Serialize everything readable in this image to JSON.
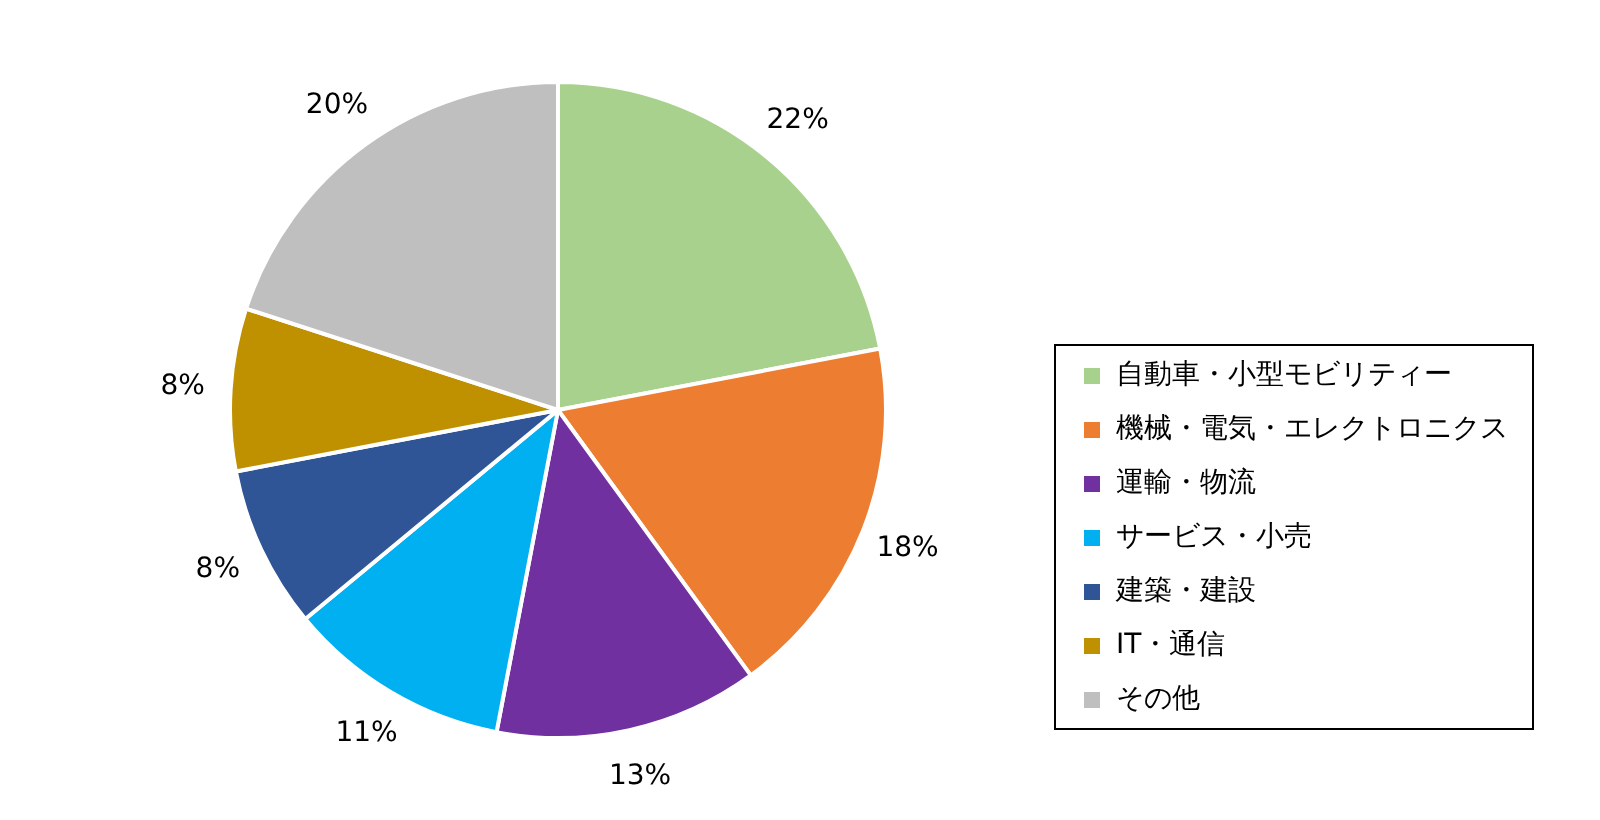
{
  "chart_data": {
    "type": "pie",
    "categories": [
      "自動車・小型モビリティー",
      "機械・電気・エレクトロニクス",
      "運輸・物流",
      "サービス・小売",
      "建築・建設",
      "IT・通信",
      "その他"
    ],
    "values": [
      22,
      18,
      13,
      11,
      8,
      8,
      20
    ],
    "value_labels": [
      "22%",
      "18%",
      "13%",
      "11%",
      "8%",
      "8%",
      "20%"
    ],
    "colors": [
      "#a9d18e",
      "#ed7d31",
      "#7030a0",
      "#00b0f0",
      "#2f5597",
      "#bf9000",
      "#bfbfbf"
    ],
    "legend": "right"
  }
}
